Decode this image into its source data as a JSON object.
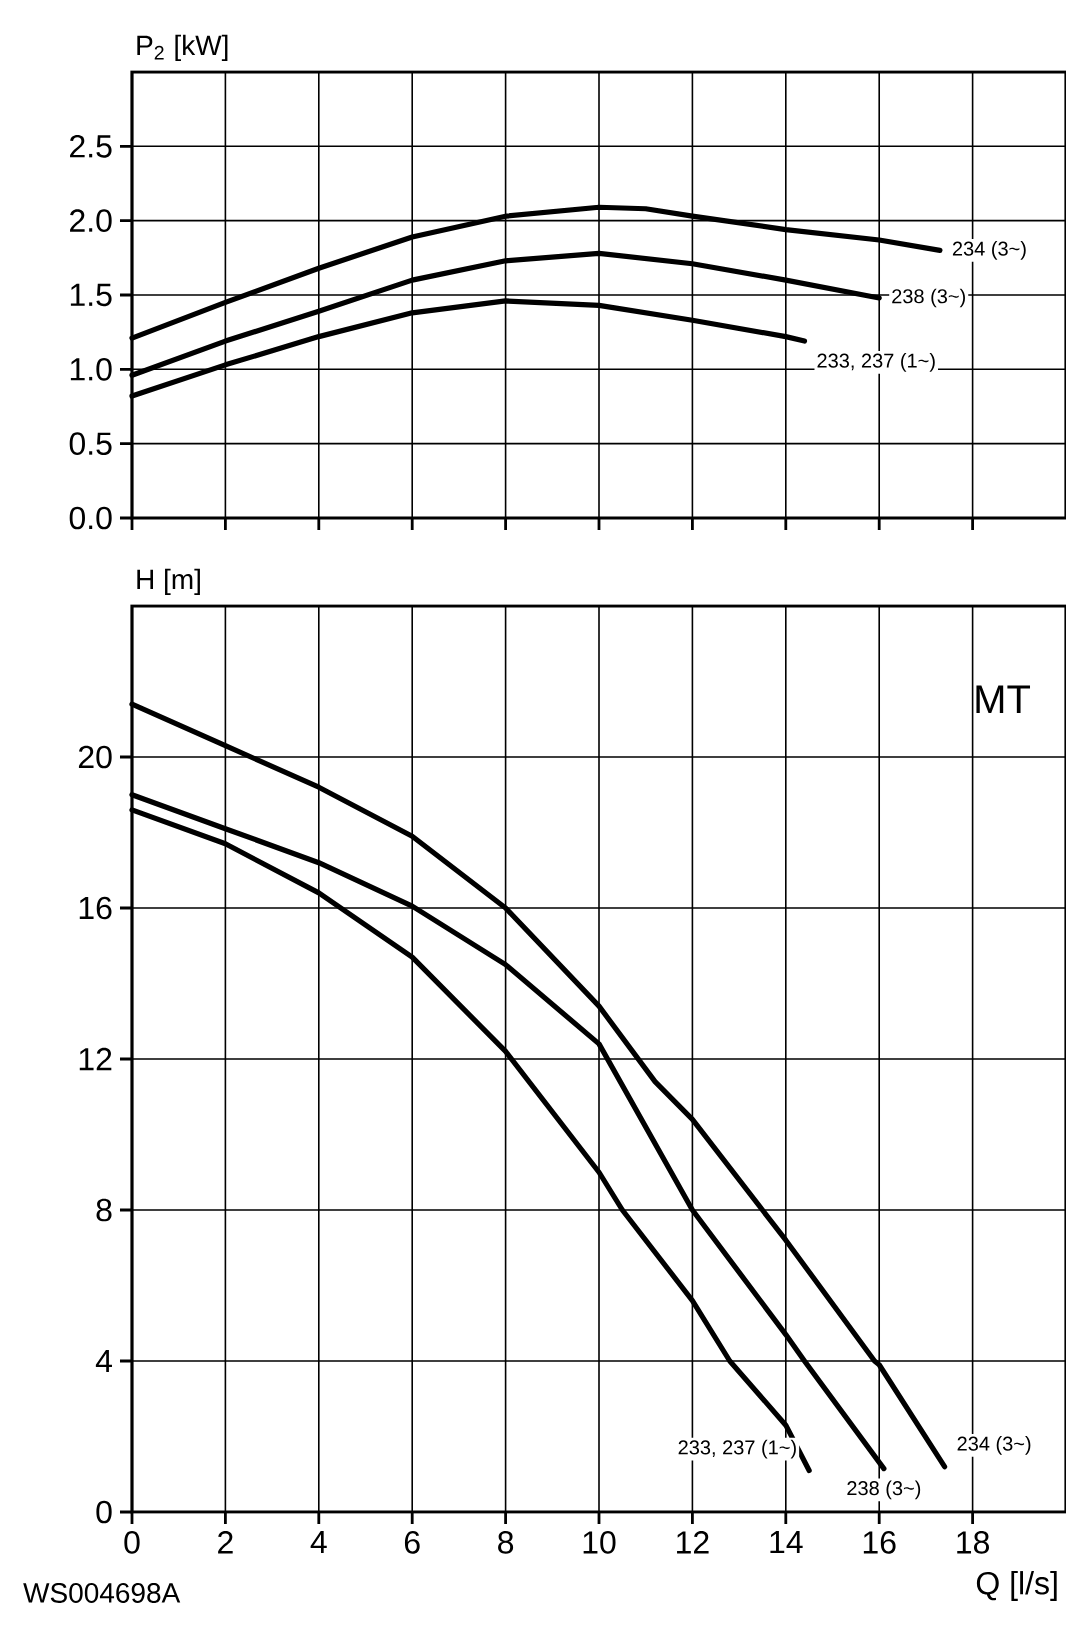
{
  "chart_data": [
    {
      "type": "line",
      "ylabel": "P$_{2}$  [kW]",
      "xlim": [
        0,
        20
      ],
      "ylim": [
        0,
        3
      ],
      "xticks": [
        0,
        2,
        4,
        6,
        8,
        10,
        12,
        14,
        16,
        18
      ],
      "yticks": [
        {
          "value": 0,
          "label": "0.0"
        },
        0.5,
        {
          "value": 1,
          "label": "1.0"
        },
        1.5,
        {
          "value": 2,
          "label": "2.0"
        },
        2.5
      ],
      "grid": true,
      "tick_labels": "y",
      "series": [
        {
          "name": "234 (3~)",
          "color": "#000000",
          "x": [
            0,
            2,
            4,
            6,
            8,
            10,
            11,
            12,
            14,
            16,
            17.3
          ],
          "values": [
            1.21,
            1.45,
            1.68,
            1.89,
            2.03,
            2.09,
            2.08,
            2.03,
            1.94,
            1.87,
            1.8
          ]
        },
        {
          "name": "238 (3~)",
          "color": "#000000",
          "x": [
            0,
            2,
            4,
            6,
            8,
            10,
            12,
            14,
            16
          ],
          "values": [
            0.96,
            1.19,
            1.39,
            1.6,
            1.73,
            1.78,
            1.71,
            1.6,
            1.48
          ]
        },
        {
          "name": "233, 237 (1~)",
          "color": "#000000",
          "x": [
            0,
            2,
            4,
            6,
            8,
            10,
            12,
            14,
            14.4
          ],
          "values": [
            0.82,
            1.03,
            1.22,
            1.38,
            1.46,
            1.43,
            1.33,
            1.22,
            1.19
          ]
        }
      ]
    },
    {
      "type": "line",
      "xlabel": "Q [l/s]",
      "ylabel": "H [m]",
      "annotations": [
        "MT",
        "WS004698A"
      ],
      "xlim": [
        0,
        20
      ],
      "ylim": [
        0,
        24
      ],
      "xticks": [
        0,
        2,
        4,
        6,
        8,
        10,
        12,
        14,
        16,
        18
      ],
      "yticks": [
        0,
        4,
        8,
        12,
        16,
        20
      ],
      "grid": true,
      "series": [
        {
          "name": "234 (3~)",
          "color": "#000000",
          "x": [
            0,
            2,
            4,
            6,
            8,
            10,
            11.2,
            12,
            13.5,
            14,
            15.9,
            16,
            17.4
          ],
          "values": [
            21.4,
            20.3,
            19.2,
            17.9,
            16.0,
            13.4,
            11.4,
            10.4,
            8.0,
            7.2,
            4.0,
            3.9,
            1.2
          ]
        },
        {
          "name": "238 (3~)",
          "color": "#000000",
          "x": [
            0,
            2,
            4,
            6,
            8,
            10,
            12,
            14,
            14.4,
            16.1
          ],
          "values": [
            19.0,
            18.1,
            17.2,
            16.05,
            14.5,
            12.4,
            8.0,
            4.7,
            4.0,
            1.15
          ]
        },
        {
          "name": "233, 237 (1~)",
          "color": "#000000",
          "x": [
            0,
            2,
            4,
            6,
            8,
            10,
            10.5,
            12,
            12.8,
            14,
            14.5
          ],
          "values": [
            18.6,
            17.7,
            16.4,
            14.7,
            12.2,
            9.0,
            8.0,
            5.6,
            4.0,
            2.3,
            1.1
          ]
        }
      ]
    }
  ]
}
